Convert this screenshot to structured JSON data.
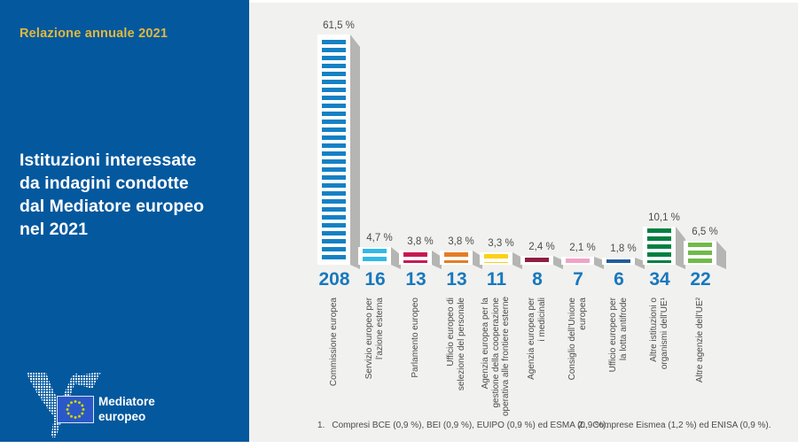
{
  "sidebar": {
    "report_label": "Relazione annuale 2021",
    "title": "Istituzioni interessate\nda indagini condotte\ndal Mediatore europeo\nnel 2021",
    "logo_line1": "Mediatore",
    "logo_line2": "europeo",
    "bg_color": "#04589e",
    "accent_color": "#e0b83e"
  },
  "chart_data": {
    "type": "bar",
    "title": "Istituzioni interessate da indagini condotte dal Mediatore europeo nel 2021",
    "categories": [
      "Commissione europea",
      "Servizio europeo per l’azione esterna",
      "Parlamento europeo",
      "Ufficio europeo di selezione del personale",
      "Agenzia europea per la gestione della cooperazione operativa alle frontiere esterne",
      "Agenzia europea per i medicinali",
      "Consiglio dell’Unione europea",
      "Ufficio europeo per la lotta antifrode",
      "Altre istituzioni o organismi dell’UE¹",
      "Altre agenzie dell’UE²"
    ],
    "category_label_lines": [
      [
        "Commissione europea"
      ],
      [
        "Servizio europeo per",
        "l’azione esterna"
      ],
      [
        "Parlamento europeo"
      ],
      [
        "Ufficio europeo di",
        "selezione del personale"
      ],
      [
        "Agenzia europea per la",
        "gestione della cooperazione",
        "operativa alle frontiere esterne"
      ],
      [
        "Agenzia europea per",
        "i medicinali"
      ],
      [
        "Consiglio dell’Unione",
        "europea"
      ],
      [
        "Ufficio europeo per",
        "la lotta antifrode"
      ],
      [
        "Altre istituzioni o",
        "organismi dell’UE¹"
      ],
      [
        "Altre agenzie dell’UE²"
      ]
    ],
    "percent_values": [
      61.5,
      4.7,
      3.8,
      3.8,
      3.3,
      2.4,
      2.1,
      1.8,
      10.1,
      6.5
    ],
    "percent_labels": [
      "61,5 %",
      "4,7 %",
      "3,8 %",
      "3,8 %",
      "3,3 %",
      "2,4 %",
      "2,1 %",
      "1,8 %",
      "10,1 %",
      "6,5 %"
    ],
    "counts": [
      208,
      16,
      13,
      13,
      11,
      8,
      7,
      6,
      34,
      22
    ],
    "bar_colors": [
      "#1581c5",
      "#33b9e8",
      "#c51a54",
      "#e57d26",
      "#fcd116",
      "#8e1f41",
      "#f0a3c6",
      "#215d9c",
      "#008042",
      "#6fba49"
    ],
    "shadow_color": "#b5b5b3",
    "count_color": "#1878bd",
    "ylim": [
      0,
      65
    ],
    "grid": false,
    "legend": "none",
    "footnotes": [
      {
        "marker": "1.",
        "text": "Compresi BCE (0,9 %), BEI (0,9 %), EUIPO (0,9 %) ed ESMA (0,9 %)."
      },
      {
        "marker": "2.",
        "text": "Comprese Eismea (1,2 %) ed ENISA (0,9 %)."
      }
    ]
  }
}
